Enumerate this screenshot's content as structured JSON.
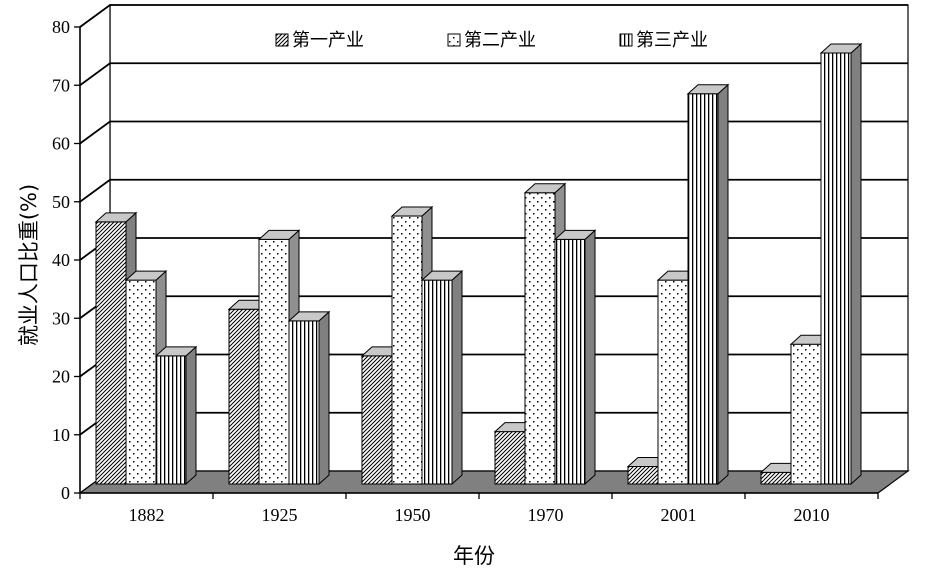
{
  "chart_data": {
    "type": "bar",
    "title": "",
    "xlabel": "年份",
    "ylabel": "就业人口比重(%)",
    "ylim": [
      0,
      80
    ],
    "yticks": [
      "0",
      "10",
      "20",
      "30",
      "40",
      "50",
      "60",
      "70",
      "80"
    ],
    "categories": [
      "1882",
      "1925",
      "1950",
      "1970",
      "2001",
      "2010"
    ],
    "series": [
      {
        "name": "第一产业",
        "pattern": "diagonal-hatch",
        "values": [
          45,
          30,
          22,
          9,
          3,
          2
        ]
      },
      {
        "name": "第二产业",
        "pattern": "dots",
        "values": [
          35,
          42,
          46,
          50,
          35,
          24
        ]
      },
      {
        "name": "第三产业",
        "pattern": "vertical-stripes",
        "values": [
          22,
          28,
          35,
          42,
          67,
          74
        ]
      }
    ],
    "grid": true,
    "legend_position": "top",
    "three_d": true,
    "colors": {
      "floor": "#808080",
      "side": "#808080",
      "top": "#c8c8c8",
      "line": "#000000",
      "background": "#ffffff"
    }
  }
}
